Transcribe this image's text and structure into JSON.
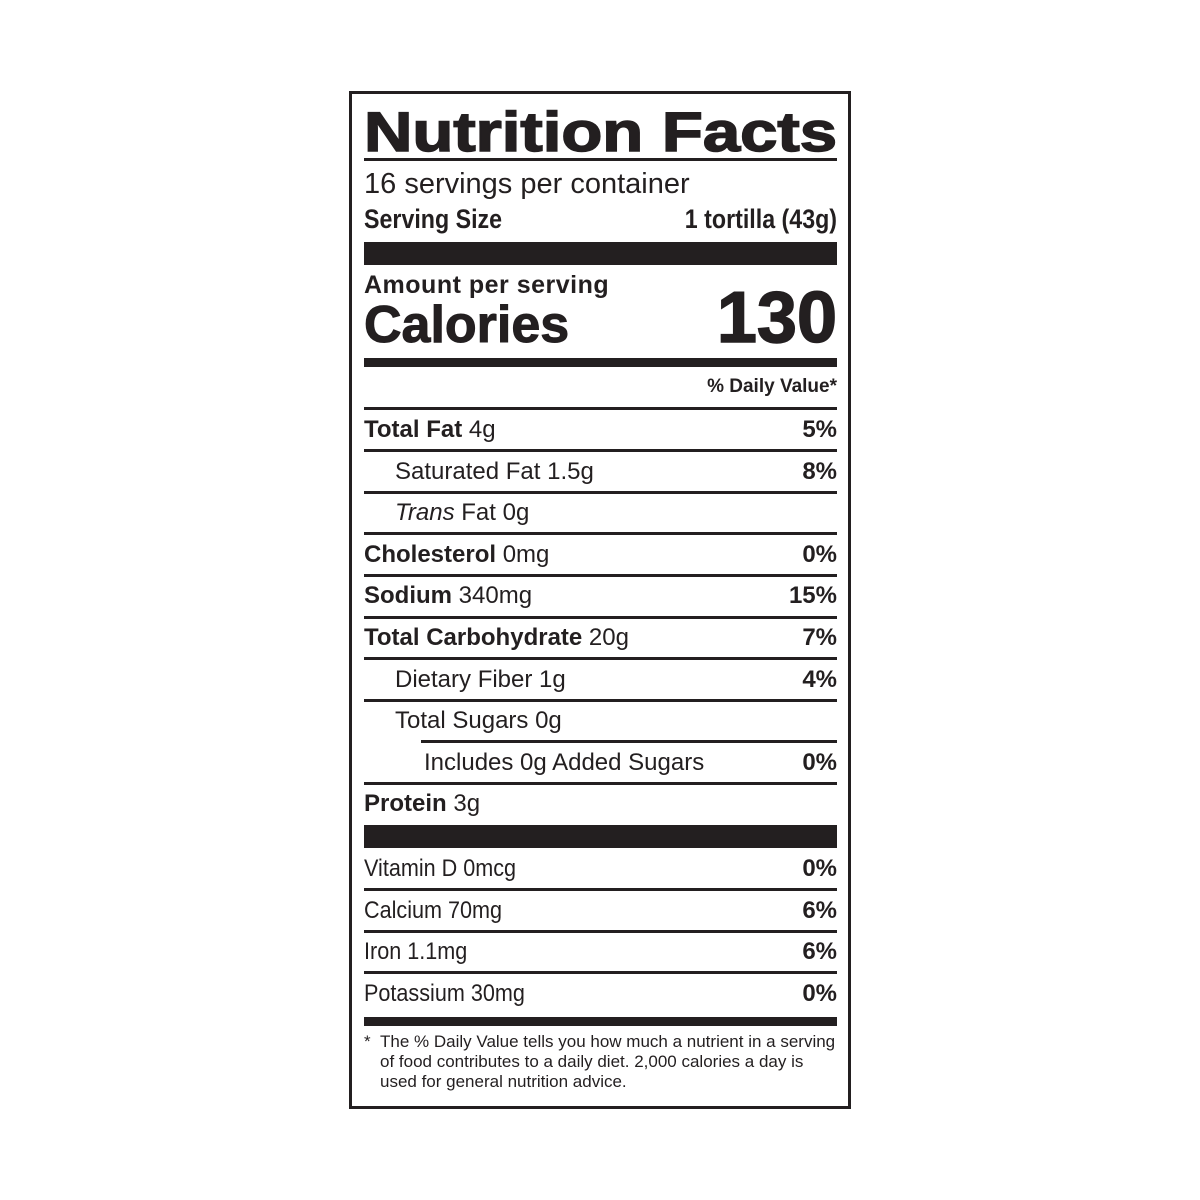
{
  "title": "Nutrition Facts",
  "servings_per_container": "16 servings per container",
  "serving_size": {
    "label": "Serving Size",
    "value": "1 tortilla (43g)"
  },
  "amount_per_serving": "Amount per serving",
  "calories": {
    "label": "Calories",
    "value": "130"
  },
  "daily_value_header": "% Daily Value*",
  "nutrients": [
    {
      "name": "Total Fat",
      "amount": "4g",
      "dv": "5%"
    },
    {
      "name": "Saturated Fat",
      "amount": "1.5g",
      "dv": "8%"
    },
    {
      "name": "Trans",
      "name_rest": "Fat",
      "amount": "0g",
      "dv": ""
    },
    {
      "name": "Cholesterol",
      "amount": "0mg",
      "dv": "0%"
    },
    {
      "name": "Sodium",
      "amount": "340mg",
      "dv": "15%"
    },
    {
      "name": "Total Carbohydrate",
      "amount": "20g",
      "dv": "7%"
    },
    {
      "name": "Dietary Fiber",
      "amount": "1g",
      "dv": "4%"
    },
    {
      "name": "Total Sugars",
      "amount": "0g",
      "dv": ""
    },
    {
      "name": "Includes 0g Added Sugars",
      "amount": "",
      "dv": "0%"
    },
    {
      "name": "Protein",
      "amount": "3g",
      "dv": ""
    }
  ],
  "vitamins": [
    {
      "label": "Vitamin D 0mcg",
      "dv": "0%"
    },
    {
      "label": "Calcium 70mg",
      "dv": "6%"
    },
    {
      "label": "Iron 1.1mg",
      "dv": "6%"
    },
    {
      "label": "Potassium 30mg",
      "dv": "0%"
    }
  ],
  "footnote": {
    "marker": "*",
    "text": "The % Daily Value tells you how much a nutrient in a serving of food contributes to a daily diet. 2,000 calories a day is used for general nutrition advice."
  }
}
